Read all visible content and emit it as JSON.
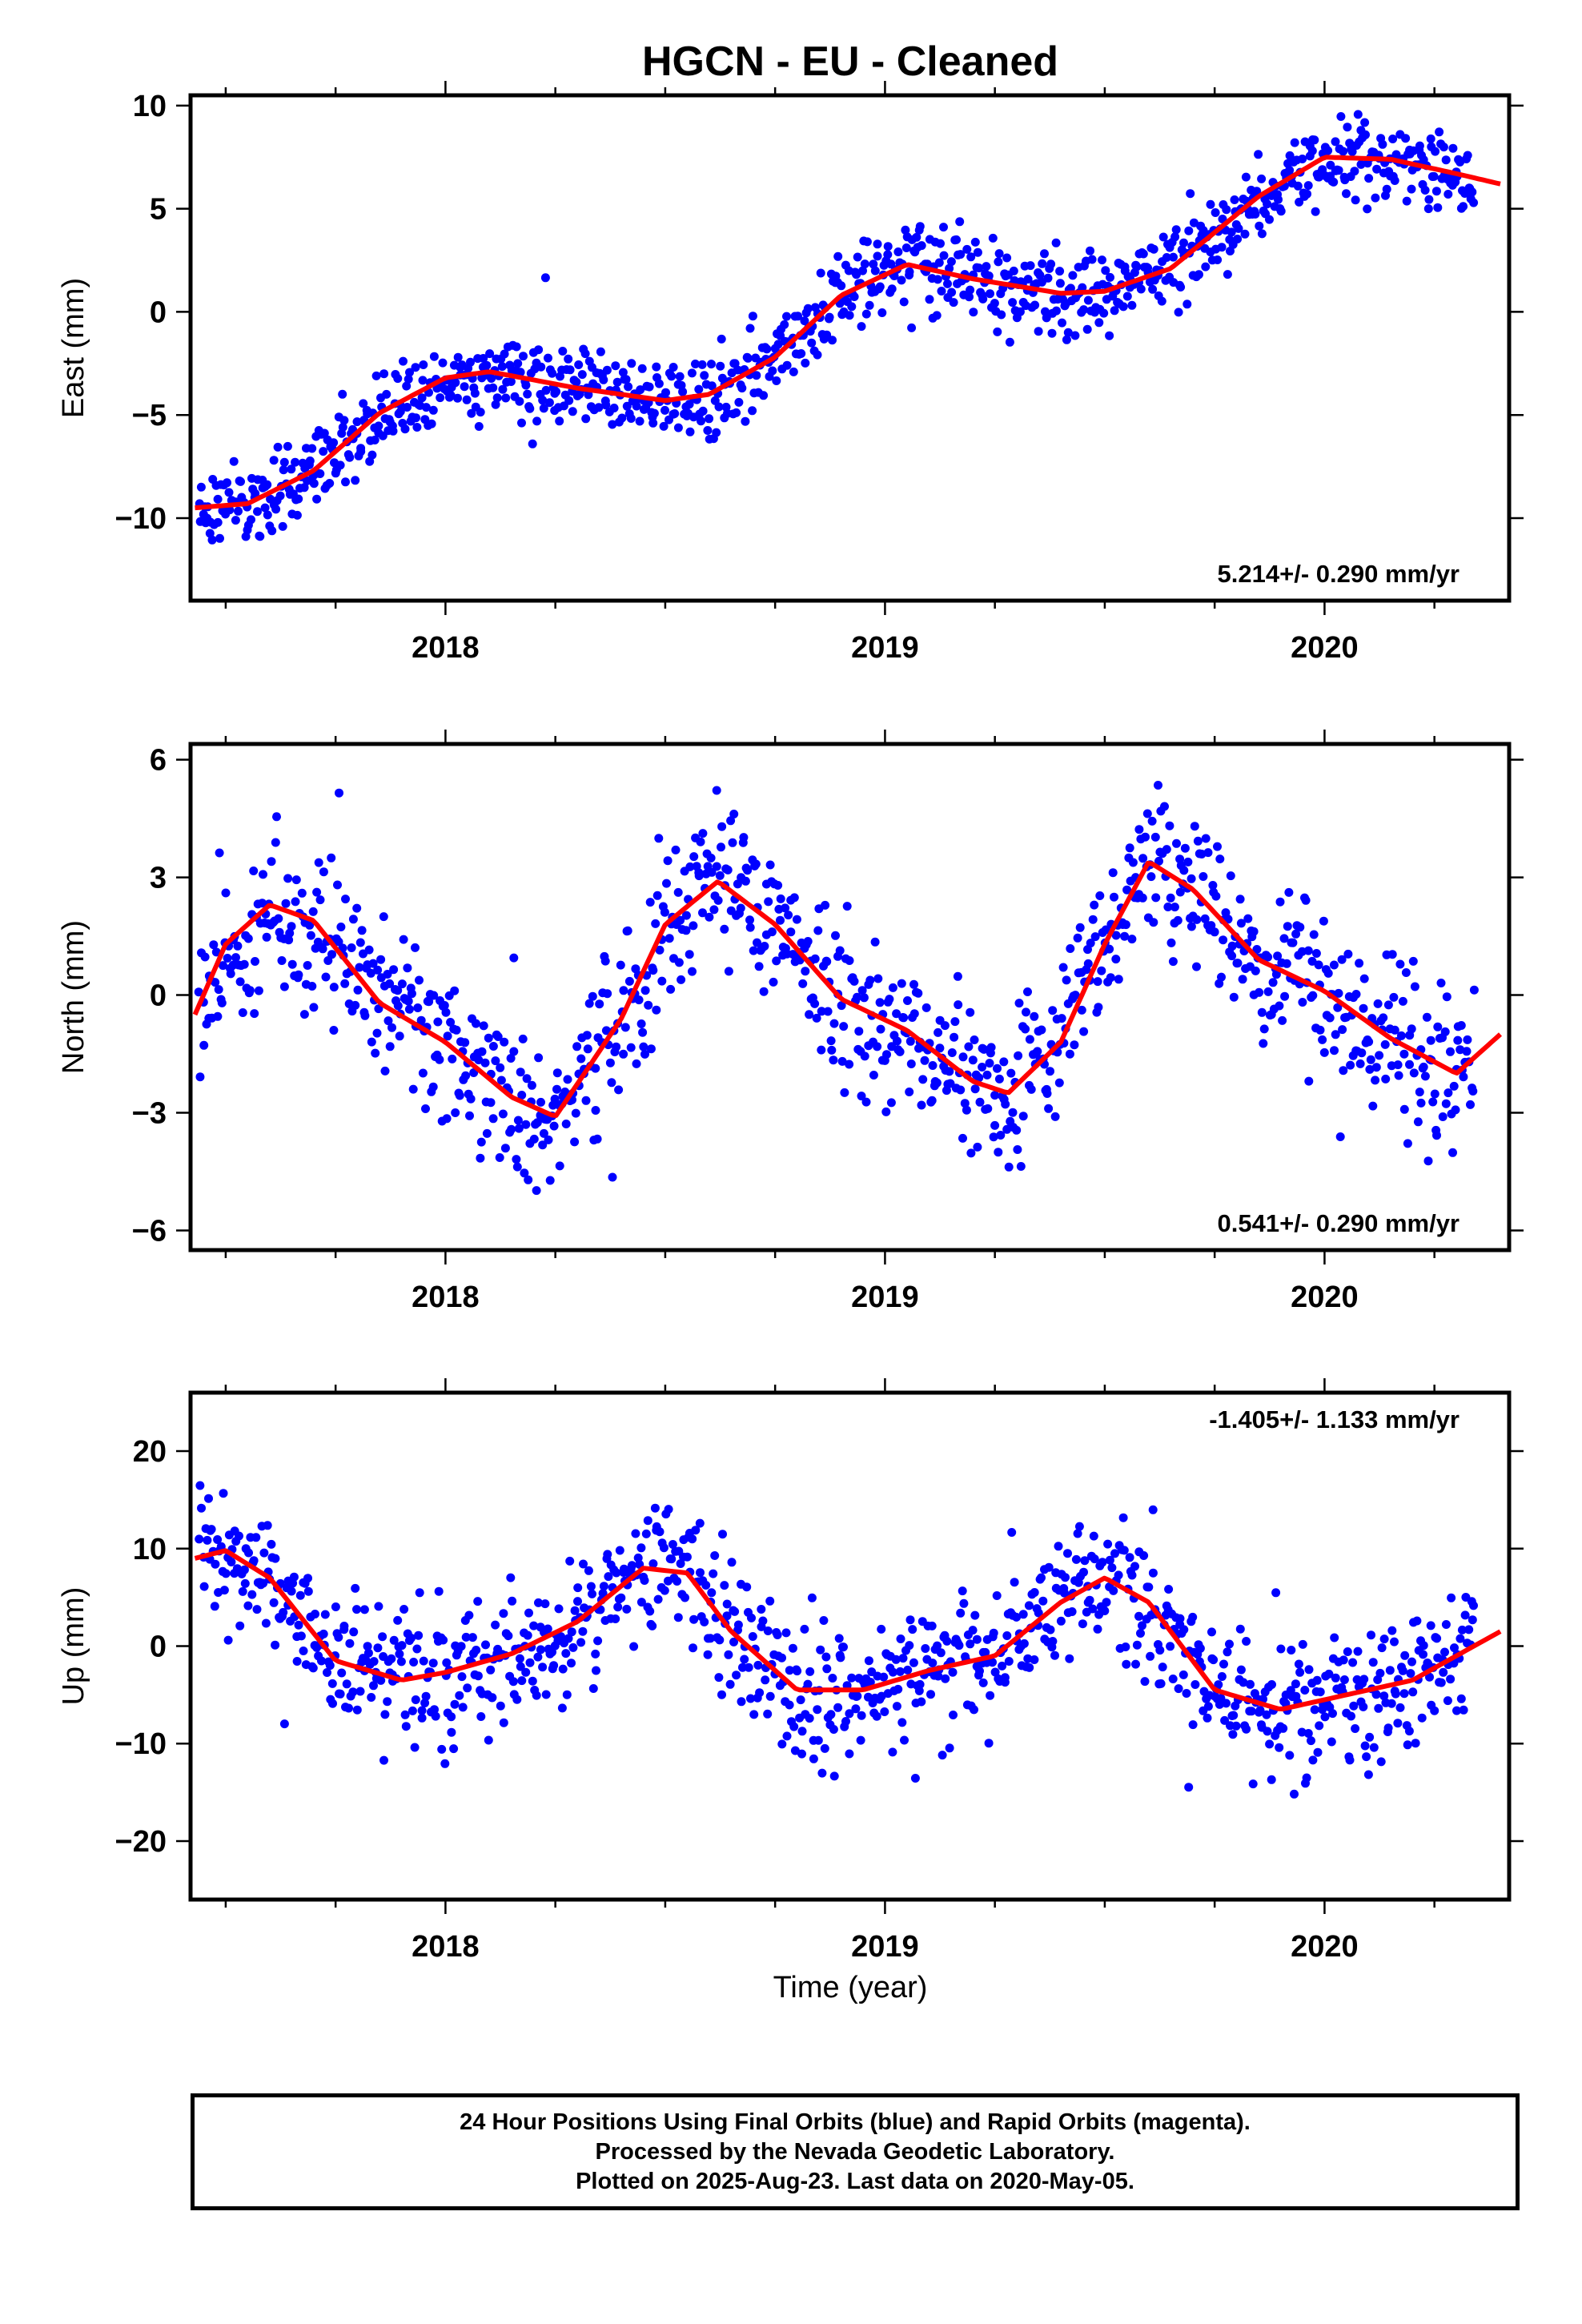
{
  "page_title": "HGCN  - EU - Cleaned",
  "x_axis_title": "Time (year)",
  "footer": {
    "line1": "24 Hour Positions Using Final Orbits (blue) and Rapid Orbits (magenta).",
    "line2": "Processed by the Nevada Geodetic Laboratory.",
    "line3": "Plotted on 2025-Aug-23. Last data on 2020-May-05."
  },
  "colors": {
    "points": "#0000ff",
    "fit": "#ff0000",
    "frame": "#000000",
    "background": "#ffffff"
  },
  "chart_data": [
    {
      "type": "scatter",
      "title": "HGCN  - EU - Cleaned",
      "ylabel": "East (mm)",
      "xlabel": "",
      "xlim": [
        2017.42,
        2020.42
      ],
      "ylim": [
        -14,
        10.5
      ],
      "x_ticks": [
        2018,
        2019,
        2020
      ],
      "x_tick_labels": [
        "2018",
        "2019",
        "2020"
      ],
      "y_ticks": [
        -10,
        -5,
        0,
        5,
        10
      ],
      "y_tick_labels": [
        "−10",
        "−5",
        "0",
        "5",
        "10"
      ],
      "rate": "5.214+/- 0.290 mm/yr",
      "rate_position": "bottom-right",
      "scatter_noise": 1.0,
      "series": [
        {
          "role": "fit-curve",
          "x": [
            2017.43,
            2017.55,
            2017.7,
            2017.85,
            2018.0,
            2018.1,
            2018.3,
            2018.5,
            2018.6,
            2018.75,
            2018.9,
            2019.05,
            2019.2,
            2019.4,
            2019.5,
            2019.65,
            2019.85,
            2020.0,
            2020.15,
            2020.3,
            2020.4
          ],
          "y": [
            -9.5,
            -9.3,
            -7.7,
            -4.9,
            -3.2,
            -2.9,
            -3.7,
            -4.3,
            -4.0,
            -2.2,
            0.8,
            2.3,
            1.6,
            0.9,
            1.0,
            2.1,
            5.6,
            7.5,
            7.4,
            6.7,
            6.2
          ]
        }
      ]
    },
    {
      "type": "scatter",
      "title": "",
      "ylabel": "North (mm)",
      "xlabel": "",
      "xlim": [
        2017.42,
        2020.42
      ],
      "ylim": [
        -6.5,
        6.4
      ],
      "x_ticks": [
        2018,
        2019,
        2020
      ],
      "x_tick_labels": [
        "2018",
        "2019",
        "2020"
      ],
      "y_ticks": [
        -6,
        -3,
        0,
        3,
        6
      ],
      "y_tick_labels": [
        "−6",
        "−3",
        "0",
        "3",
        "6"
      ],
      "rate": "0.541+/- 0.290 mm/yr",
      "rate_position": "bottom-right",
      "scatter_noise": 1.0,
      "series": [
        {
          "role": "fit-curve",
          "x": [
            2017.43,
            2017.5,
            2017.6,
            2017.7,
            2017.85,
            2018.0,
            2018.15,
            2018.25,
            2018.4,
            2018.5,
            2018.62,
            2018.75,
            2018.9,
            2019.05,
            2019.2,
            2019.28,
            2019.4,
            2019.5,
            2019.6,
            2019.7,
            2019.85,
            2020.0,
            2020.15,
            2020.3,
            2020.4
          ],
          "y": [
            -0.5,
            1.3,
            2.3,
            1.9,
            -0.2,
            -1.2,
            -2.6,
            -3.1,
            -0.6,
            1.8,
            2.9,
            1.8,
            -0.1,
            -0.9,
            -2.2,
            -2.5,
            -1.2,
            1.3,
            3.4,
            2.7,
            0.9,
            0.1,
            -1.1,
            -2.0,
            -1.0
          ]
        }
      ]
    },
    {
      "type": "scatter",
      "title": "",
      "ylabel": "Up (mm)",
      "xlabel": "Time (year)",
      "xlim": [
        2017.42,
        2020.42
      ],
      "ylim": [
        -26,
        26
      ],
      "x_ticks": [
        2018,
        2019,
        2020
      ],
      "x_tick_labels": [
        "2018",
        "2019",
        "2020"
      ],
      "y_ticks": [
        -20,
        -10,
        0,
        10,
        20
      ],
      "y_tick_labels": [
        "−20",
        "−10",
        "0",
        "10",
        "20"
      ],
      "rate": "-1.405+/- 1.133 mm/yr",
      "rate_position": "top-right",
      "scatter_noise": 3.5,
      "series": [
        {
          "role": "fit-curve",
          "x": [
            2017.43,
            2017.5,
            2017.6,
            2017.75,
            2017.9,
            2018.0,
            2018.15,
            2018.3,
            2018.45,
            2018.55,
            2018.65,
            2018.8,
            2018.95,
            2019.1,
            2019.25,
            2019.4,
            2019.5,
            2019.6,
            2019.75,
            2019.9,
            2020.05,
            2020.2,
            2020.4
          ],
          "y": [
            9.0,
            9.8,
            7.0,
            -1.5,
            -3.5,
            -2.7,
            -0.8,
            2.5,
            8.0,
            7.5,
            1.5,
            -4.5,
            -4.5,
            -2.5,
            -1.0,
            4.5,
            7.0,
            4.5,
            -4.5,
            -6.5,
            -5.0,
            -3.5,
            1.5
          ]
        }
      ]
    }
  ]
}
